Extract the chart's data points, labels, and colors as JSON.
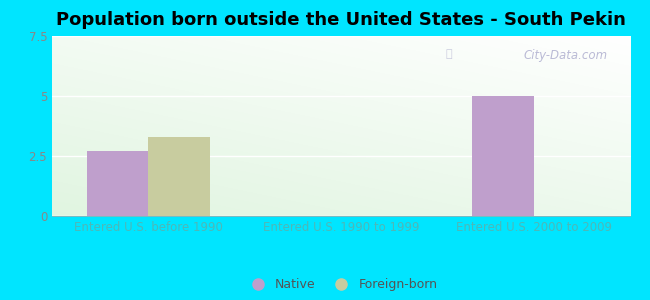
{
  "title": "Population born outside the United States - South Pekin",
  "categories": [
    "Entered U.S. before 1990",
    "Entered U.S. 1990 to 1999",
    "Entered U.S. 2000 to 2009"
  ],
  "native_values": [
    2.7,
    0,
    5.0
  ],
  "foreign_values": [
    3.3,
    0,
    0
  ],
  "native_color": "#bf9fcc",
  "foreign_color": "#c8cc9f",
  "ylim": [
    0,
    7.5
  ],
  "yticks": [
    0,
    2.5,
    5,
    7.5
  ],
  "background_outer": "#00e5ff",
  "watermark": "City-Data.com",
  "legend_native": "Native",
  "legend_foreign": "Foreign-born",
  "bar_width": 0.32,
  "title_fontsize": 13,
  "tick_fontsize": 8.5,
  "legend_fontsize": 9,
  "xtick_color": "#4db8b8",
  "ytick_color": "#888888"
}
